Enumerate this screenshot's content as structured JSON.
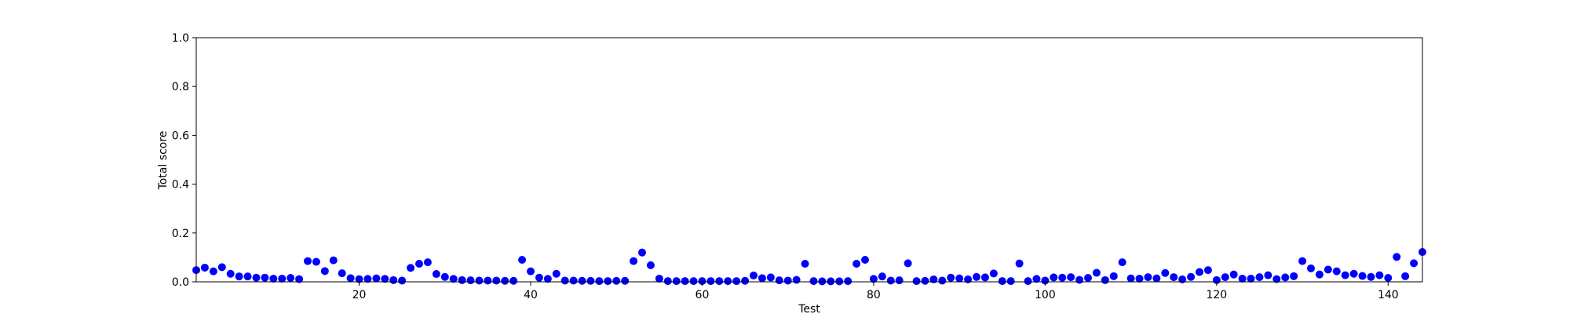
{
  "chart_data": {
    "type": "scatter",
    "title": "",
    "xlabel": "Test",
    "ylabel": "Total score",
    "xlim": [
      1,
      144
    ],
    "ylim": [
      0,
      1.0
    ],
    "xticks": [
      20,
      40,
      60,
      80,
      100,
      120,
      140
    ],
    "xtick_labels": [
      "20",
      "40",
      "60",
      "80",
      "100",
      "120",
      "140"
    ],
    "yticks": [
      0.0,
      0.2,
      0.4,
      0.6,
      0.8,
      1.0
    ],
    "ytick_labels": [
      "0.0",
      "0.2",
      "0.4",
      "0.6",
      "0.8",
      "1.0"
    ],
    "grid": false,
    "marker_color": "#0000ff",
    "series": [
      {
        "x": [
          1,
          2,
          3,
          4,
          5,
          6,
          7,
          8,
          9,
          10,
          11,
          12,
          13,
          14,
          15,
          16,
          17,
          18,
          19,
          20,
          21,
          22,
          23,
          24,
          25,
          26,
          27,
          28,
          29,
          30,
          31,
          32,
          33,
          34,
          35,
          36,
          37,
          38,
          39,
          40,
          41,
          42,
          43,
          44,
          45,
          46,
          47,
          48,
          49,
          50,
          51,
          52,
          53,
          54,
          55,
          56,
          57,
          58,
          59,
          60,
          61,
          62,
          63,
          64,
          65,
          66,
          67,
          68,
          69,
          70,
          71,
          72,
          73,
          74,
          75,
          76,
          77,
          78,
          79,
          80,
          81,
          82,
          83,
          84,
          85,
          86,
          87,
          88,
          89,
          90,
          91,
          92,
          93,
          94,
          95,
          96,
          97,
          98,
          99,
          100,
          101,
          102,
          103,
          104,
          105,
          106,
          107,
          108,
          109,
          110,
          111,
          112,
          113,
          114,
          115,
          116,
          117,
          118,
          119,
          120,
          121,
          122,
          123,
          124,
          125,
          126,
          127,
          128,
          129,
          130,
          131,
          132,
          133,
          134,
          135,
          136,
          137,
          138,
          139,
          140,
          141,
          142,
          143,
          144
        ],
        "y": [
          0.048,
          0.058,
          0.043,
          0.06,
          0.033,
          0.022,
          0.022,
          0.017,
          0.017,
          0.013,
          0.013,
          0.016,
          0.011,
          0.085,
          0.082,
          0.044,
          0.088,
          0.035,
          0.015,
          0.011,
          0.012,
          0.014,
          0.012,
          0.007,
          0.005,
          0.057,
          0.074,
          0.08,
          0.032,
          0.02,
          0.012,
          0.007,
          0.006,
          0.005,
          0.005,
          0.005,
          0.004,
          0.004,
          0.09,
          0.043,
          0.017,
          0.012,
          0.033,
          0.005,
          0.005,
          0.004,
          0.004,
          0.003,
          0.003,
          0.004,
          0.004,
          0.085,
          0.12,
          0.068,
          0.013,
          0.003,
          0.003,
          0.003,
          0.003,
          0.003,
          0.003,
          0.003,
          0.003,
          0.003,
          0.004,
          0.026,
          0.015,
          0.018,
          0.006,
          0.005,
          0.008,
          0.074,
          0.003,
          0.002,
          0.002,
          0.002,
          0.003,
          0.074,
          0.09,
          0.012,
          0.022,
          0.005,
          0.006,
          0.076,
          0.003,
          0.004,
          0.01,
          0.005,
          0.017,
          0.014,
          0.01,
          0.02,
          0.018,
          0.034,
          0.003,
          0.003,
          0.075,
          0.003,
          0.012,
          0.005,
          0.018,
          0.017,
          0.019,
          0.008,
          0.016,
          0.037,
          0.007,
          0.023,
          0.08,
          0.014,
          0.013,
          0.019,
          0.014,
          0.036,
          0.019,
          0.01,
          0.02,
          0.04,
          0.048,
          0.007,
          0.019,
          0.03,
          0.013,
          0.013,
          0.019,
          0.027,
          0.011,
          0.018,
          0.023,
          0.085,
          0.055,
          0.03,
          0.05,
          0.043,
          0.027,
          0.033,
          0.024,
          0.02,
          0.027,
          0.016,
          0.102,
          0.023,
          0.076,
          0.122
        ]
      }
    ]
  }
}
